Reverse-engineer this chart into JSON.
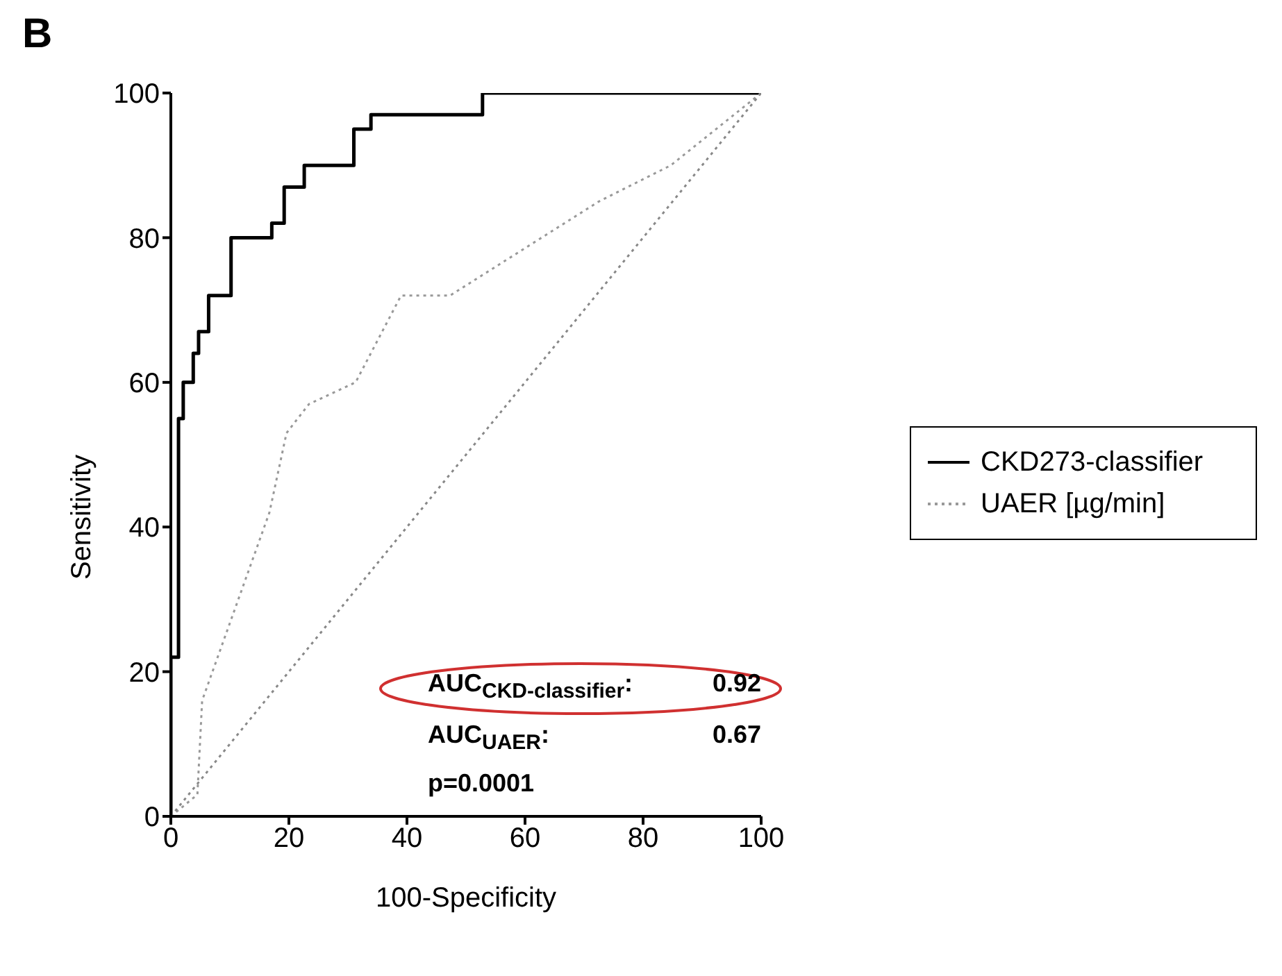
{
  "chart_data": {
    "type": "line",
    "title": "B",
    "xlabel": "100-Specificity",
    "ylabel": "Sensitivity",
    "xlim": [
      0,
      100
    ],
    "ylim": [
      0,
      100
    ],
    "xticks": [
      0,
      20,
      40,
      60,
      80,
      100
    ],
    "yticks": [
      0,
      20,
      40,
      60,
      80,
      100
    ],
    "legend": "right",
    "marker": "none",
    "series": [
      {
        "name": "CKD273-classifier",
        "type": "step",
        "color": "#000000",
        "line_style": "solid",
        "x": [
          0,
          0,
          1.3,
          2.1,
          3.8,
          4.7,
          6.4,
          10.2,
          17.1,
          19.2,
          22.6,
          31,
          33.9,
          52.8,
          100
        ],
        "values": [
          0,
          22,
          55,
          60,
          64,
          67,
          72,
          80,
          82,
          87,
          90,
          95,
          97,
          100,
          100
        ]
      },
      {
        "name": "UAER [µg/min]",
        "type": "line",
        "color": "#999999",
        "line_style": "dotted",
        "x": [
          0,
          4.5,
          5.3,
          16.7,
          19.6,
          23.4,
          31.3,
          39,
          47.3,
          72.5,
          84.7,
          100
        ],
        "values": [
          0,
          3,
          16,
          42,
          53,
          57,
          60,
          72,
          72,
          85,
          90,
          100
        ]
      },
      {
        "type": "line",
        "color": "#888888",
        "line_style": "dotted",
        "x": [
          0,
          100
        ],
        "values": [
          0,
          100
        ]
      }
    ],
    "annotations": [
      "AUC$_{CKD-classifier}$:",
      "0.92",
      "AUC$_{UAER}$:",
      "0.67",
      "p=0.0001"
    ]
  }
}
